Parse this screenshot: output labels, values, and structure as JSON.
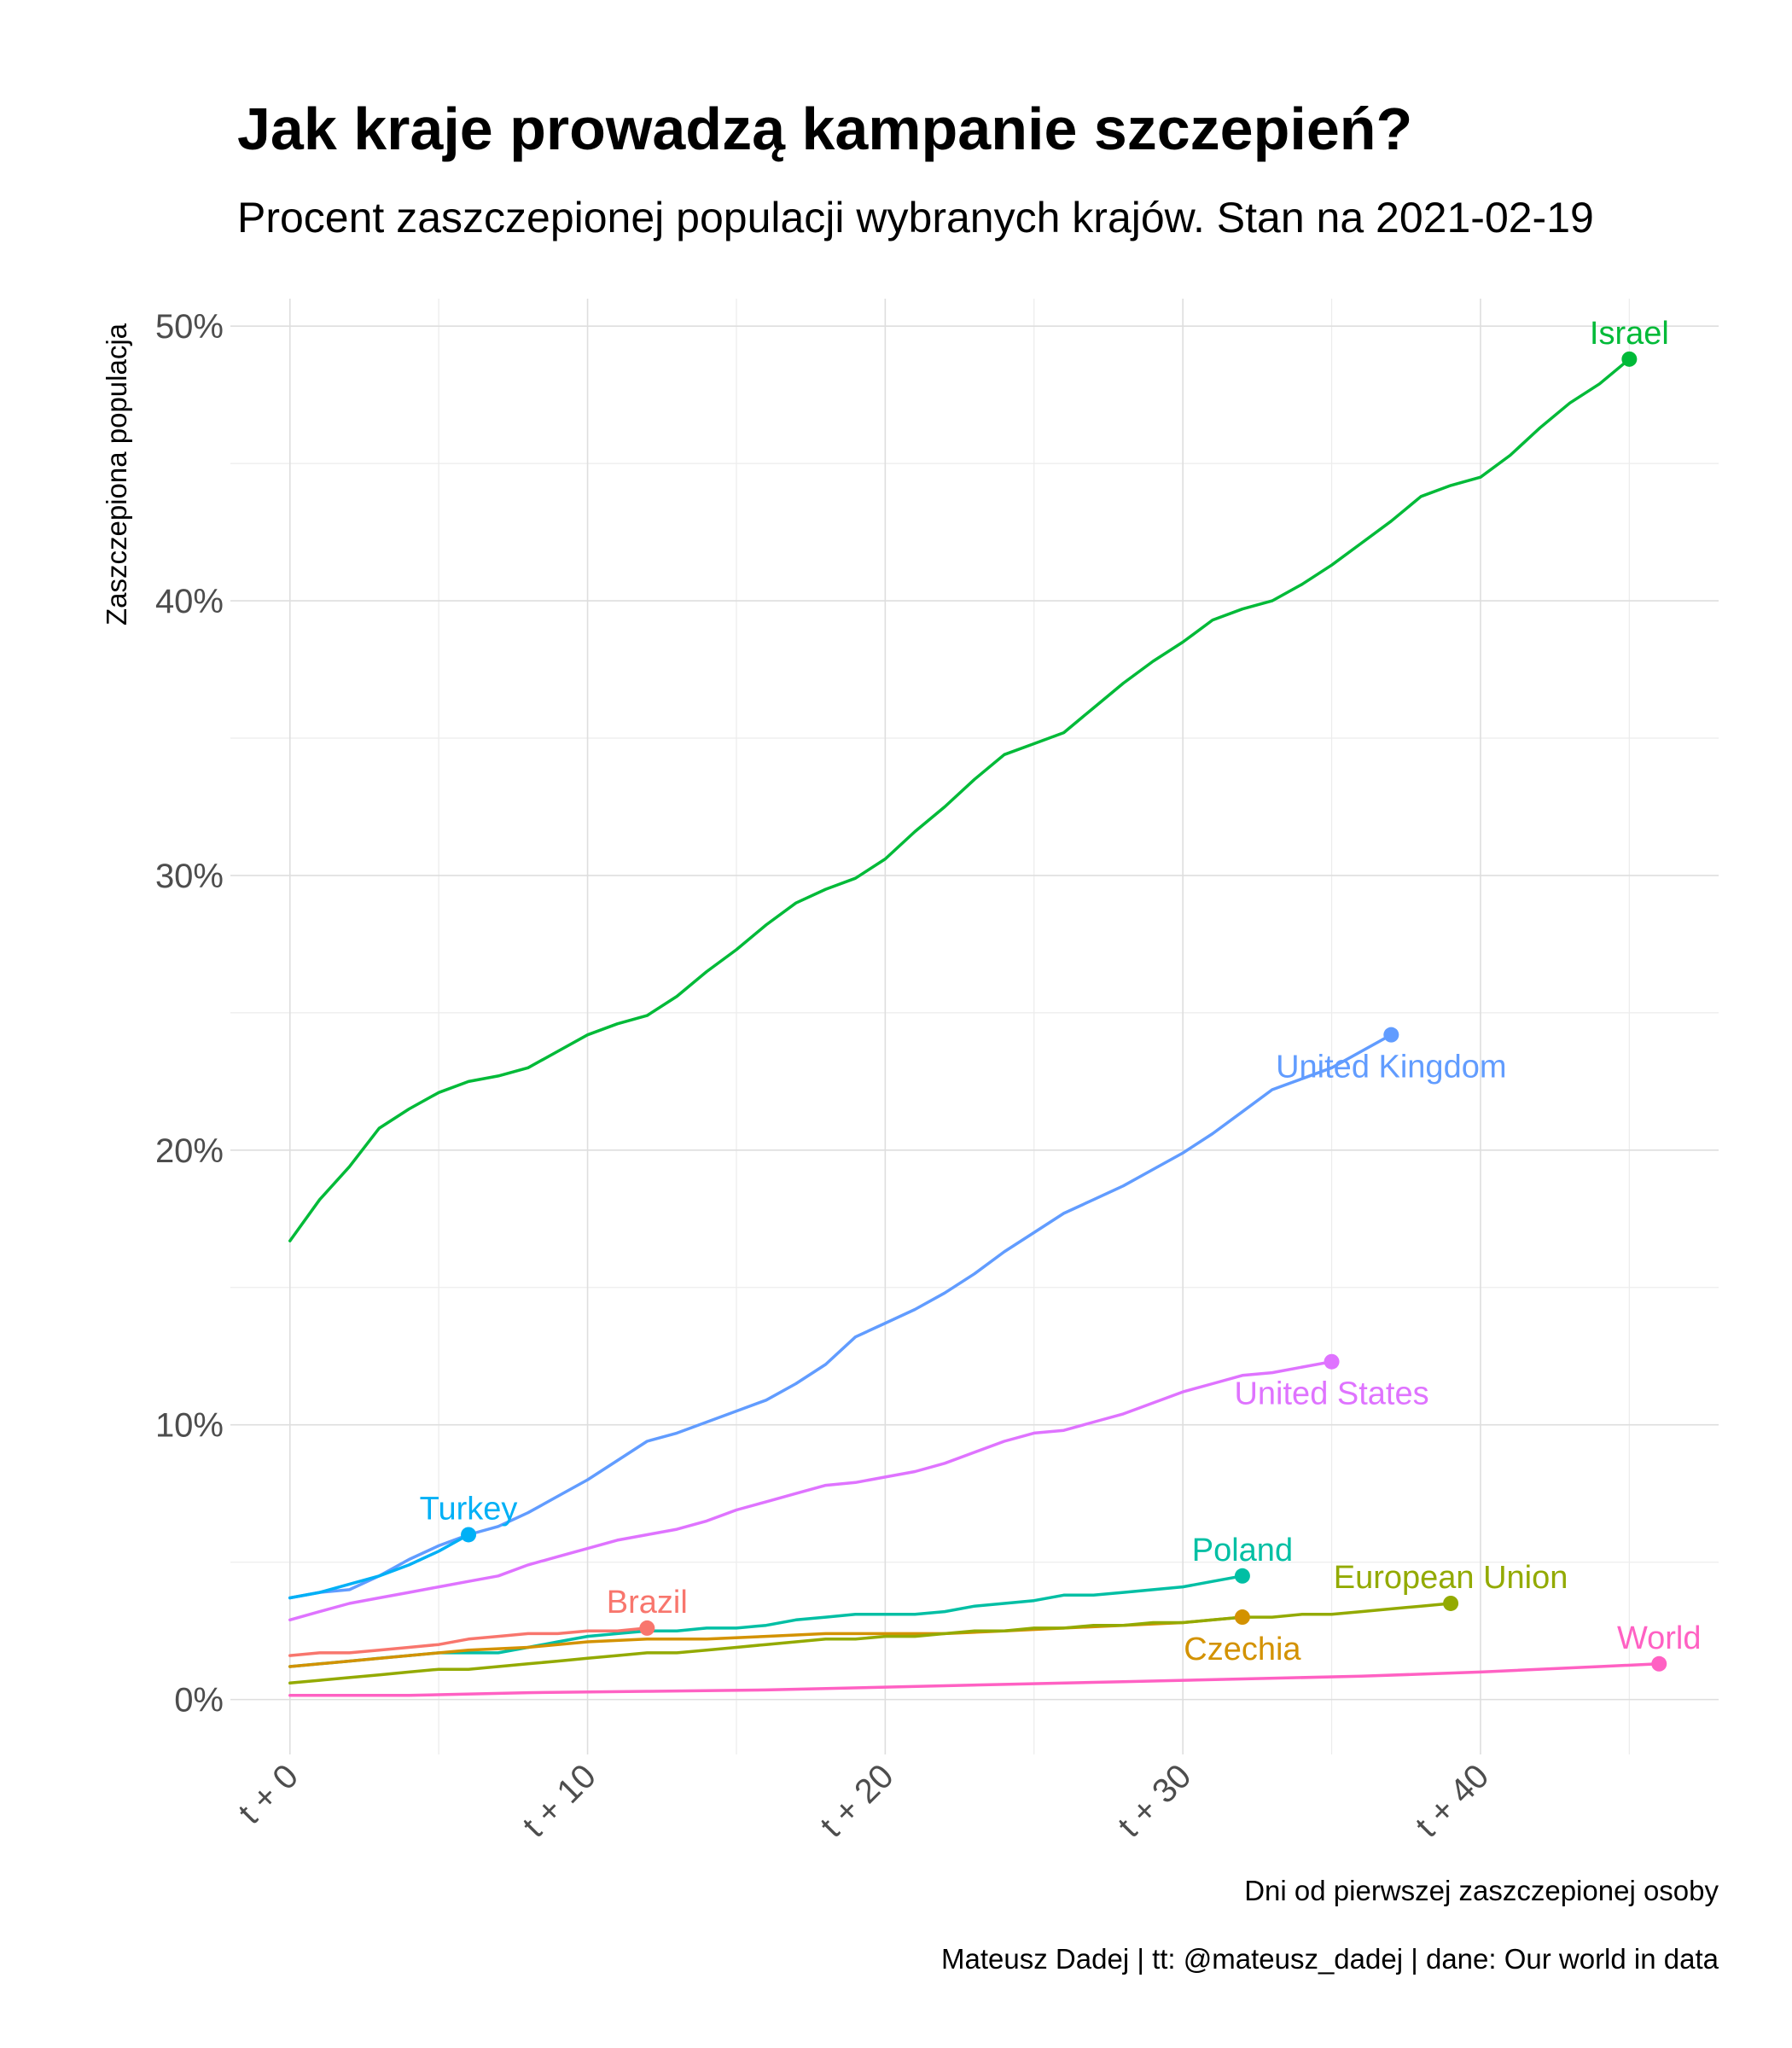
{
  "chart_data": {
    "type": "line",
    "title": "Jak kraje prowadzą kampanie szczepień?",
    "subtitle": "Procent zaszczepionej populacji wybranych krajów. Stan na 2021-02-19",
    "xlabel": "Dni od pierwszej zaszczepionej osoby",
    "ylabel": "Zaszczepiona populacja",
    "caption": "Mateusz Dadej | tt: @mateusz_dadej | dane: Our world in data",
    "xlim": [
      -2,
      48
    ],
    "ylim": [
      -2,
      51
    ],
    "x_ticks": [
      {
        "value": 0,
        "label": "t + 0"
      },
      {
        "value": 10,
        "label": "t + 10"
      },
      {
        "value": 20,
        "label": "t + 20"
      },
      {
        "value": 30,
        "label": "t + 30"
      },
      {
        "value": 40,
        "label": "t + 40"
      }
    ],
    "y_ticks": [
      {
        "value": 0,
        "label": "0%"
      },
      {
        "value": 10,
        "label": "10%"
      },
      {
        "value": 20,
        "label": "20%"
      },
      {
        "value": 30,
        "label": "30%"
      },
      {
        "value": 40,
        "label": "40%"
      },
      {
        "value": 50,
        "label": "50%"
      }
    ],
    "grid": true,
    "legend": "none",
    "series": [
      {
        "name": "Israel",
        "color": "#00BA38",
        "label_pos": "above",
        "x": [
          0,
          1,
          2,
          3,
          4,
          5,
          6,
          7,
          8,
          9,
          10,
          11,
          12,
          13,
          14,
          15,
          16,
          17,
          18,
          19,
          20,
          21,
          22,
          23,
          24,
          25,
          26,
          27,
          28,
          29,
          30,
          31,
          32,
          33,
          34,
          35,
          36,
          37,
          38,
          39,
          40,
          41,
          42,
          43,
          44,
          45
        ],
        "y": [
          16.7,
          18.2,
          19.4,
          20.8,
          21.5,
          22.1,
          22.5,
          22.7,
          23.0,
          23.6,
          24.2,
          24.6,
          24.9,
          25.6,
          26.5,
          27.3,
          28.2,
          29.0,
          29.5,
          29.9,
          30.6,
          31.6,
          32.5,
          33.5,
          34.4,
          34.8,
          35.2,
          36.1,
          37.0,
          37.8,
          38.5,
          39.3,
          39.7,
          40.0,
          40.6,
          41.3,
          42.1,
          42.9,
          43.8,
          44.2,
          44.5,
          45.3,
          46.3,
          47.2,
          47.9,
          48.8
        ]
      },
      {
        "name": "United Kingdom",
        "color": "#619CFF",
        "label_pos": "below",
        "x": [
          0,
          1,
          2,
          3,
          4,
          5,
          6,
          7,
          8,
          9,
          10,
          11,
          12,
          13,
          14,
          15,
          16,
          17,
          18,
          19,
          20,
          21,
          22,
          23,
          24,
          25,
          26,
          27,
          28,
          29,
          30,
          31,
          32,
          33,
          34,
          35,
          36,
          37
        ],
        "y": [
          3.7,
          3.9,
          4.0,
          4.5,
          5.1,
          5.6,
          6.0,
          6.3,
          6.8,
          7.4,
          8.0,
          8.7,
          9.4,
          9.7,
          10.1,
          10.5,
          10.9,
          11.5,
          12.2,
          13.2,
          13.7,
          14.2,
          14.8,
          15.5,
          16.3,
          17.0,
          17.7,
          18.2,
          18.7,
          19.3,
          19.9,
          20.6,
          21.4,
          22.2,
          22.6,
          23.0,
          23.6,
          24.2
        ]
      },
      {
        "name": "United States",
        "color": "#DF73FF",
        "label_pos": "below",
        "x": [
          0,
          1,
          2,
          3,
          4,
          5,
          6,
          7,
          8,
          9,
          10,
          11,
          12,
          13,
          14,
          15,
          16,
          17,
          18,
          19,
          20,
          21,
          22,
          23,
          24,
          25,
          26,
          27,
          28,
          29,
          30,
          31,
          32,
          33,
          34,
          35
        ],
        "y": [
          2.9,
          3.2,
          3.5,
          3.7,
          3.9,
          4.1,
          4.3,
          4.5,
          4.9,
          5.2,
          5.5,
          5.8,
          6.0,
          6.2,
          6.5,
          6.9,
          7.2,
          7.5,
          7.8,
          7.9,
          8.1,
          8.3,
          8.6,
          9.0,
          9.4,
          9.7,
          9.8,
          10.1,
          10.4,
          10.8,
          11.2,
          11.5,
          11.8,
          11.9,
          12.1,
          12.3
        ]
      },
      {
        "name": "Turkey",
        "color": "#00B0F6",
        "label_pos": "above",
        "x": [
          0,
          1,
          2,
          3,
          4,
          5,
          6
        ],
        "y": [
          3.7,
          3.9,
          4.2,
          4.5,
          4.9,
          5.4,
          6.0
        ]
      },
      {
        "name": "Poland",
        "color": "#00BFA4",
        "label_pos": "above",
        "x": [
          0,
          1,
          2,
          3,
          4,
          5,
          6,
          7,
          8,
          9,
          10,
          11,
          12,
          13,
          14,
          15,
          16,
          17,
          18,
          19,
          20,
          21,
          22,
          23,
          24,
          25,
          26,
          27,
          28,
          29,
          30,
          31,
          32
        ],
        "y": [
          1.2,
          1.3,
          1.4,
          1.5,
          1.6,
          1.7,
          1.7,
          1.7,
          1.9,
          2.1,
          2.3,
          2.4,
          2.5,
          2.5,
          2.6,
          2.6,
          2.7,
          2.9,
          3.0,
          3.1,
          3.1,
          3.1,
          3.2,
          3.4,
          3.5,
          3.6,
          3.8,
          3.8,
          3.9,
          4.0,
          4.1,
          4.3,
          4.5
        ]
      },
      {
        "name": "Brazil",
        "color": "#F8766D",
        "label_pos": "above",
        "x": [
          0,
          1,
          2,
          3,
          4,
          5,
          6,
          7,
          8,
          9,
          10,
          11,
          12
        ],
        "y": [
          1.6,
          1.7,
          1.7,
          1.8,
          1.9,
          2.0,
          2.2,
          2.3,
          2.4,
          2.4,
          2.5,
          2.5,
          2.6
        ]
      },
      {
        "name": "Czechia",
        "color": "#D39200",
        "label_pos": "below",
        "x": [
          0,
          2,
          4,
          6,
          8,
          10,
          12,
          14,
          16,
          18,
          20,
          22,
          24,
          26,
          28,
          30,
          32
        ],
        "y": [
          1.2,
          1.4,
          1.6,
          1.8,
          1.9,
          2.1,
          2.2,
          2.2,
          2.3,
          2.4,
          2.4,
          2.4,
          2.5,
          2.6,
          2.7,
          2.8,
          3.0
        ]
      },
      {
        "name": "European Union",
        "color": "#93AA00",
        "label_pos": "above",
        "x": [
          0,
          1,
          2,
          3,
          4,
          5,
          6,
          7,
          8,
          9,
          10,
          11,
          12,
          13,
          14,
          15,
          16,
          17,
          18,
          19,
          20,
          21,
          22,
          23,
          24,
          25,
          26,
          27,
          28,
          29,
          30,
          31,
          32,
          33,
          34,
          35,
          36,
          37,
          38,
          39
        ],
        "y": [
          0.6,
          0.7,
          0.8,
          0.9,
          1.0,
          1.1,
          1.1,
          1.2,
          1.3,
          1.4,
          1.5,
          1.6,
          1.7,
          1.7,
          1.8,
          1.9,
          2.0,
          2.1,
          2.2,
          2.2,
          2.3,
          2.3,
          2.4,
          2.5,
          2.5,
          2.6,
          2.6,
          2.7,
          2.7,
          2.8,
          2.8,
          2.9,
          3.0,
          3.0,
          3.1,
          3.1,
          3.2,
          3.3,
          3.4,
          3.5
        ]
      },
      {
        "name": "World",
        "color": "#FF61C3",
        "label_pos": "above",
        "x": [
          0,
          4,
          8,
          12,
          16,
          20,
          24,
          28,
          32,
          36,
          40,
          44,
          46
        ],
        "y": [
          0.15,
          0.15,
          0.25,
          0.3,
          0.35,
          0.45,
          0.55,
          0.65,
          0.75,
          0.85,
          1.0,
          1.2,
          1.3
        ]
      }
    ]
  }
}
